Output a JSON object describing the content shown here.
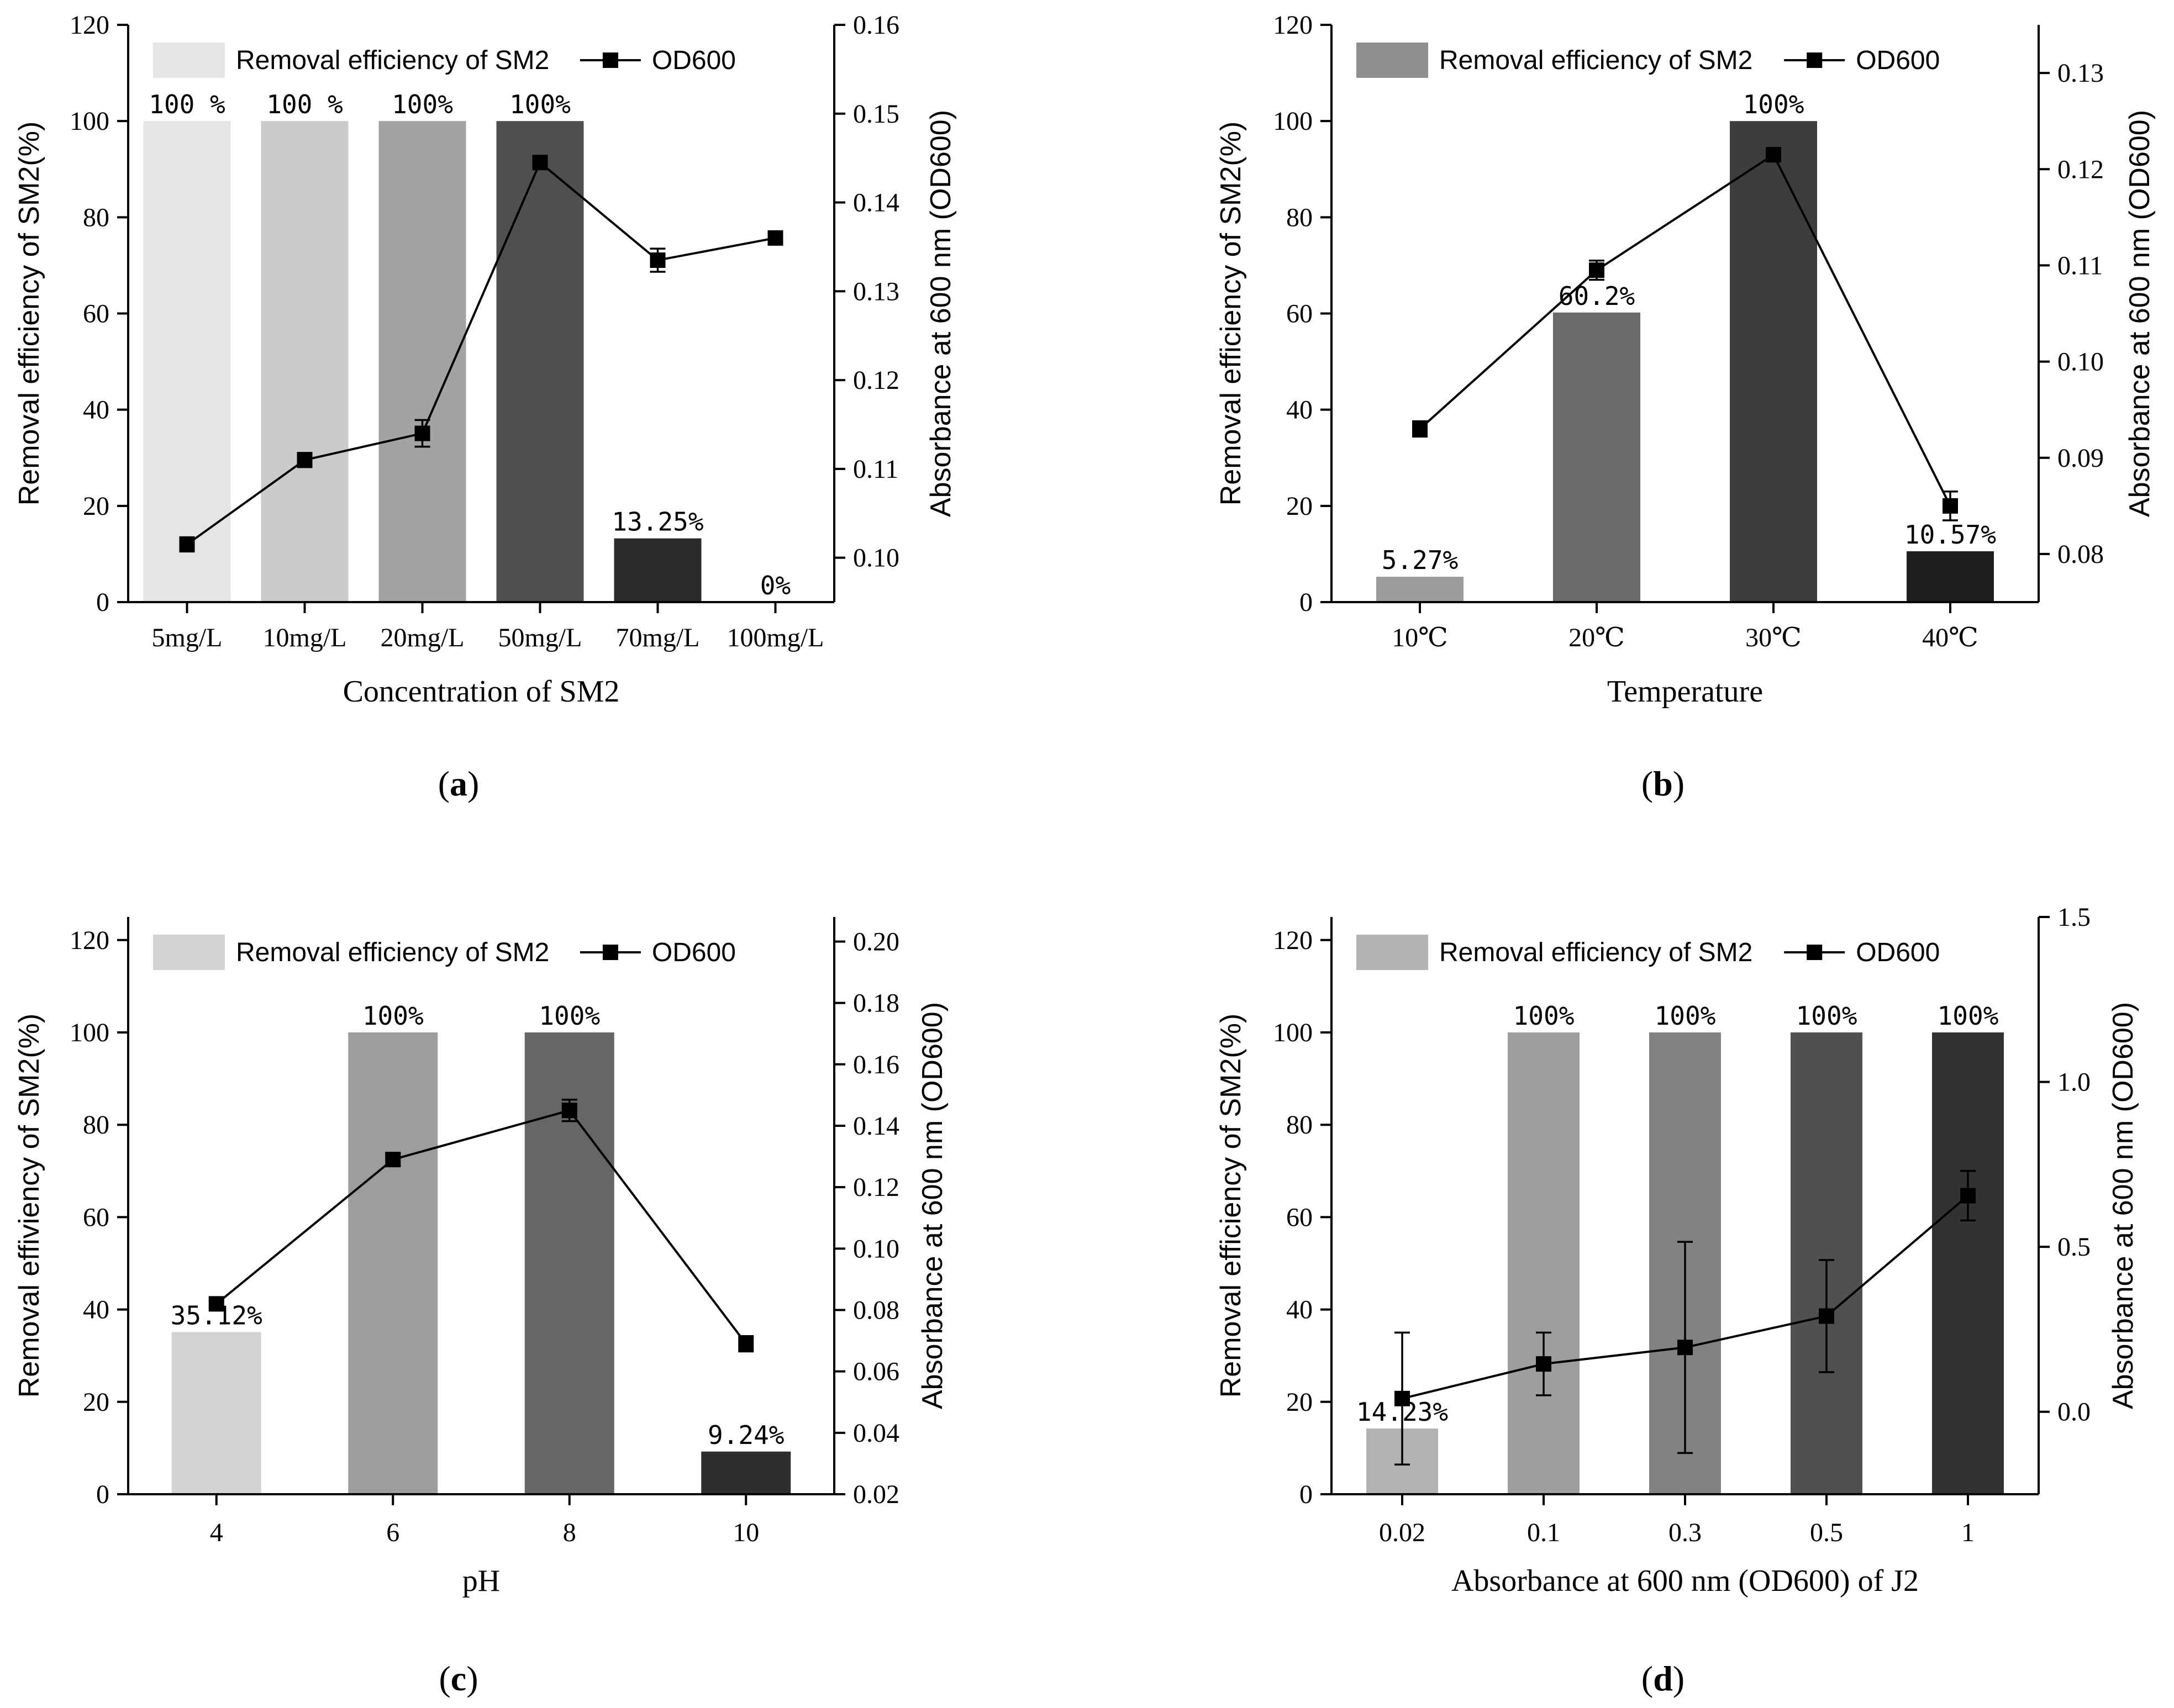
{
  "chart_data": [
    {
      "panel": "a",
      "type": "bar+line",
      "categories": [
        "5mg/L",
        "10mg/L",
        "20mg/L",
        "50mg/L",
        "70mg/L",
        "100mg/L"
      ],
      "bar_values": [
        100,
        100,
        100,
        100,
        13.25,
        0
      ],
      "bar_labels": [
        "100 %",
        "100 %",
        "100%",
        "100%",
        "13.25%",
        "0%"
      ],
      "bar_colors": [
        "#e5e5e5",
        "#cbcbcb",
        "#a3a3a3",
        "#4f4f4f",
        "#2b2b2b",
        "#2b2b2b"
      ],
      "line_values": [
        0.1015,
        0.111,
        0.114,
        0.1445,
        0.1335,
        0.136
      ],
      "line_errors": [
        0.0008,
        0.0008,
        0.0015,
        0.0005,
        0.0013,
        0.0002
      ],
      "xlabel": "Concentration of SM2",
      "ylabel": "Removal efficiency of SM2(%)",
      "y2label": "Absorbance at 600 nm (OD600)",
      "ylim": [
        0,
        120
      ],
      "yticks": [
        0,
        20,
        40,
        60,
        80,
        100,
        120
      ],
      "y2lim": [
        0.095,
        0.16
      ],
      "y2ticks": [
        "0.10",
        "0.11",
        "0.12",
        "0.13",
        "0.14",
        "0.15",
        "0.16"
      ],
      "legend_bar": "Removal efficiency of SM2",
      "legend_line": "OD600",
      "legend_swatch": "#e5e5e5",
      "legend_placement": "top",
      "label_letter": "a"
    },
    {
      "panel": "b",
      "type": "bar+line",
      "categories": [
        "10℃",
        "20℃",
        "30℃",
        "40℃"
      ],
      "bar_values": [
        5.27,
        60.2,
        100,
        10.57
      ],
      "bar_labels": [
        "5.27%",
        "60.2%",
        "100%",
        "10.57%"
      ],
      "bar_colors": [
        "#9b9b9b",
        "#6b6b6b",
        "#3d3d3d",
        "#1f1f1f"
      ],
      "line_values": [
        0.093,
        0.1095,
        0.1215,
        0.085
      ],
      "line_errors": [
        0.0008,
        0.001,
        0.0007,
        0.0015
      ],
      "xlabel": "Temperature",
      "ylabel": "Removal efficiency of SM2(%)",
      "y2label": "Absorbance at 600 nm (OD600)",
      "ylim": [
        0,
        120
      ],
      "yticks": [
        0,
        20,
        40,
        60,
        80,
        100,
        120
      ],
      "y2lim": [
        0.075,
        0.135
      ],
      "y2ticks": [
        "0.08",
        "0.09",
        "0.10",
        "0.11",
        "0.12",
        "0.13"
      ],
      "legend_bar": "Removal efficiency of SM2",
      "legend_line": "OD600",
      "legend_swatch": "#8e8e8e",
      "legend_placement": "top",
      "label_letter": "b"
    },
    {
      "panel": "c",
      "type": "bar+line",
      "categories": [
        "4",
        "6",
        "8",
        "10"
      ],
      "bar_values": [
        35.12,
        100,
        100,
        9.24
      ],
      "bar_labels": [
        "35.12%",
        "100%",
        "100%",
        "9.24%"
      ],
      "bar_colors": [
        "#d3d3d3",
        "#9d9d9d",
        "#666666",
        "#2e2e2e"
      ],
      "line_values": [
        0.082,
        0.129,
        0.145,
        0.069
      ],
      "line_errors": [
        0.001,
        0.002,
        0.0035,
        0.0025
      ],
      "xlabel": "pH",
      "ylabel": "Removal effiviency of SM2(%)",
      "y2label": "Absorbance at 600 nm (OD600)",
      "ylim": [
        0,
        125
      ],
      "yticks": [
        0,
        20,
        40,
        60,
        80,
        100,
        120
      ],
      "y2lim": [
        0.02,
        0.208
      ],
      "y2ticks": [
        "0.02",
        "0.04",
        "0.06",
        "0.08",
        "0.10",
        "0.12",
        "0.14",
        "0.16",
        "0.18",
        "0.20"
      ],
      "legend_bar": "Removal efficiency of SM2",
      "legend_line": "OD600",
      "legend_swatch": "#d3d3d3",
      "legend_placement": "top",
      "label_letter": "c"
    },
    {
      "panel": "d",
      "type": "bar+line",
      "categories": [
        "0.02",
        "0.1",
        "0.3",
        "0.5",
        "1"
      ],
      "bar_values": [
        14.23,
        100,
        100,
        100,
        100
      ],
      "bar_labels": [
        "14.23%",
        "100%",
        "100%",
        "100%",
        "100%"
      ],
      "bar_colors": [
        "#b3b3b3",
        "#9e9e9e",
        "#828282",
        "#505050",
        "#323232"
      ],
      "line_values": [
        0.04,
        0.145,
        0.195,
        0.29,
        0.655
      ],
      "line_errors": [
        0.2,
        0.095,
        0.32,
        0.17,
        0.075
      ],
      "xlabel": "Absorbance at 600 nm (OD600) of J2",
      "ylabel": "Removal efficiency of SM2(%)",
      "y2label": "Absorbance at 600 nm (OD600)",
      "ylim": [
        0,
        125
      ],
      "yticks": [
        0,
        20,
        40,
        60,
        80,
        100,
        120
      ],
      "y2lim": [
        -0.25,
        1.5
      ],
      "y2ticks": [
        "0.0",
        "0.5",
        "1.0",
        "1.5"
      ],
      "legend_bar": "Removal efficiency of SM2",
      "legend_line": "OD600",
      "legend_swatch": "#b3b3b3",
      "legend_placement": "top",
      "label_letter": "d"
    }
  ]
}
